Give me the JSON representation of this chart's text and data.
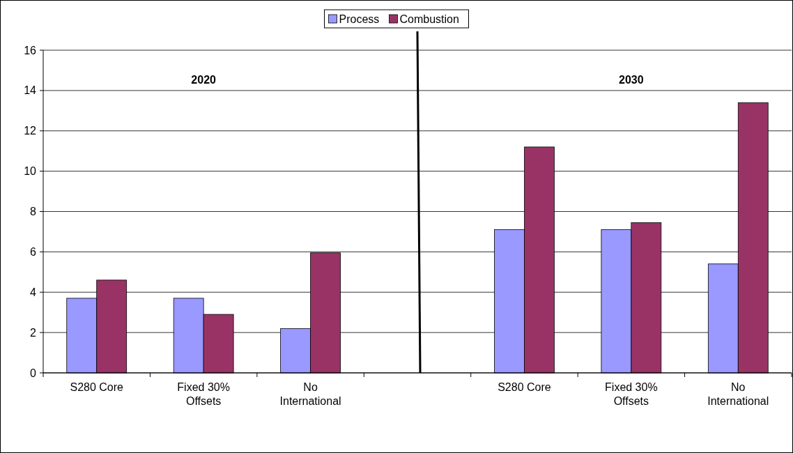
{
  "chart_data": {
    "type": "bar",
    "categories": [
      "S280 Core",
      "Fixed 30% Offsets",
      "No International",
      null,
      "S280 Core",
      "Fixed 30% Offsets",
      "No International"
    ],
    "series": [
      {
        "name": "Process",
        "color": "#9999ff",
        "values": [
          3.7,
          3.7,
          2.2,
          null,
          7.1,
          7.1,
          5.4
        ]
      },
      {
        "name": "Combustion",
        "color": "#993366",
        "values": [
          4.6,
          2.9,
          5.95,
          null,
          11.2,
          7.45,
          13.4
        ]
      }
    ],
    "ylim": [
      0,
      16
    ],
    "yticks": [
      0,
      2,
      4,
      6,
      8,
      10,
      12,
      14,
      16
    ],
    "grid": "y",
    "legend": "top",
    "annotations": [
      "2020",
      "2030"
    ]
  }
}
